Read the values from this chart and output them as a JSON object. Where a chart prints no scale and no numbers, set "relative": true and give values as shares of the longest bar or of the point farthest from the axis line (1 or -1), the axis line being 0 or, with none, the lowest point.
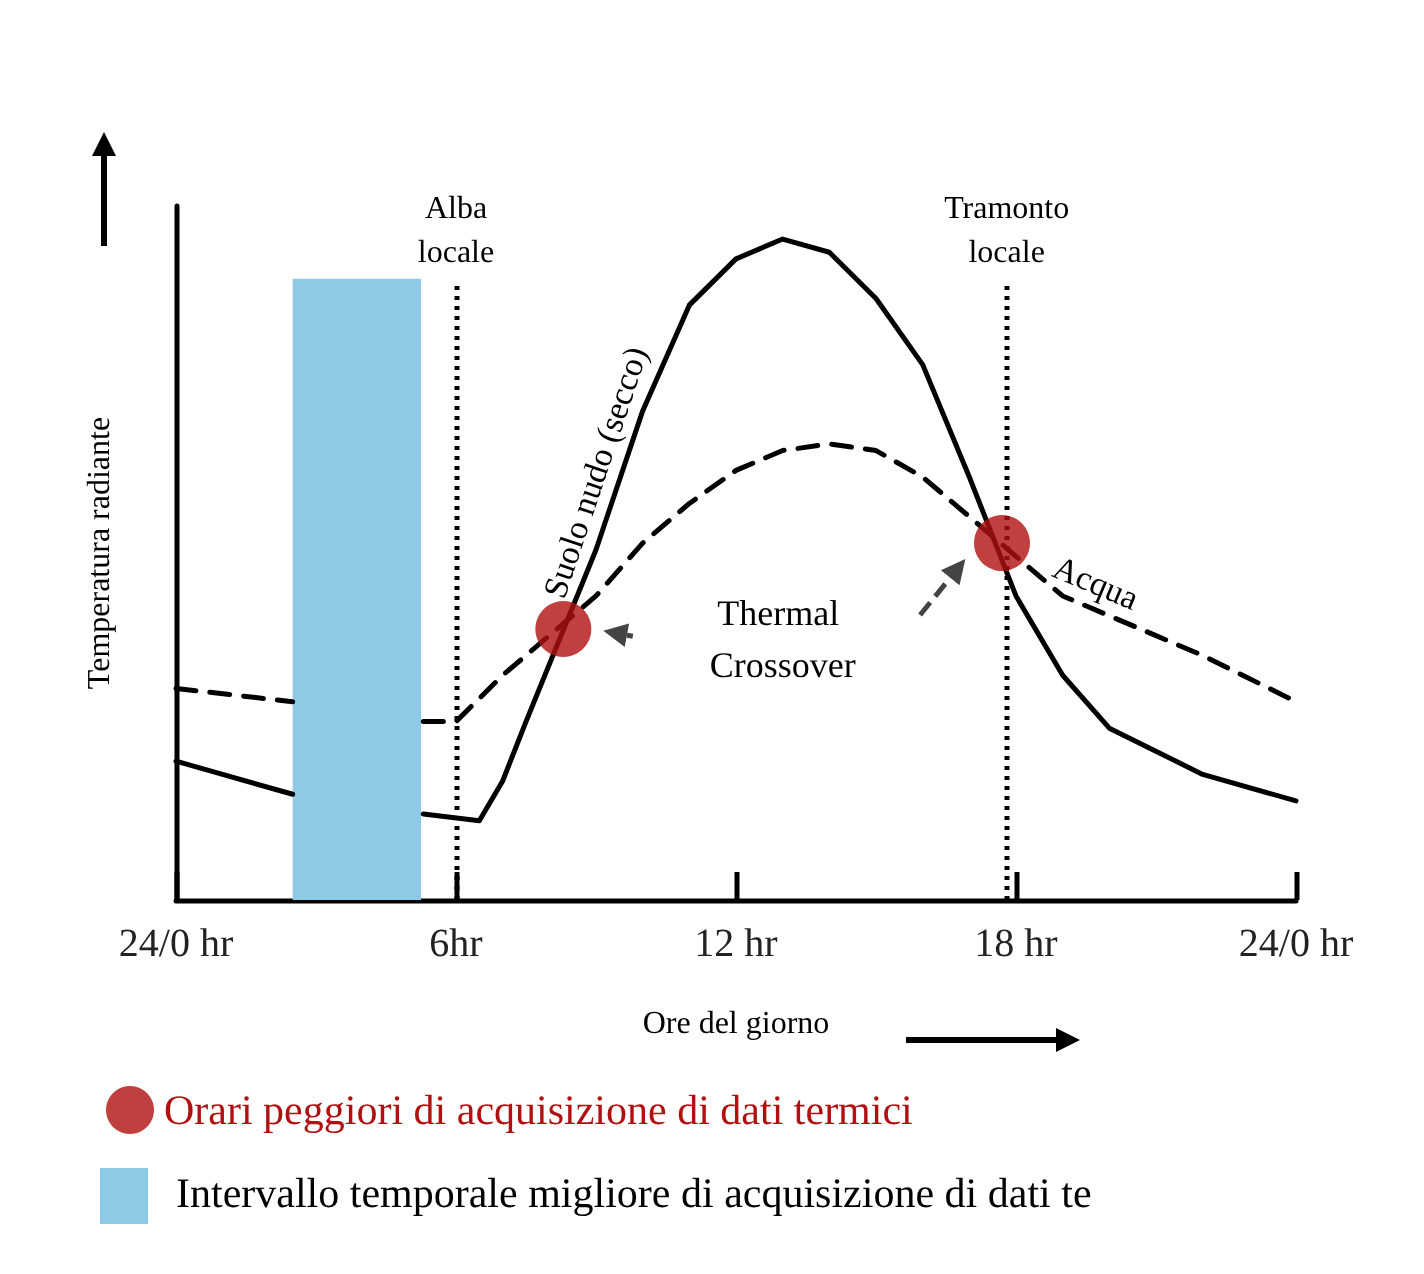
{
  "chart_data": {
    "type": "line",
    "relative": true,
    "xlabel": "Ore del giorno",
    "ylabel": "Temperatura radiante",
    "xlim": [
      0,
      24
    ],
    "xticks": [
      {
        "value": 0,
        "label": "24/0 hr"
      },
      {
        "value": 6,
        "label": "6hr"
      },
      {
        "value": 12,
        "label": "12 hr"
      },
      {
        "value": 18,
        "label": "18 hr"
      },
      {
        "value": 24,
        "label": "24/0 hr"
      }
    ],
    "series": [
      {
        "name": "Suolo nudo (secco)",
        "color": "#000000",
        "line_style": "solid",
        "marker": "none",
        "x": [
          0,
          2.5,
          4,
          5.3,
          6.5,
          7,
          7.5,
          9,
          10,
          11,
          12,
          13,
          14,
          15,
          16,
          17,
          18,
          19,
          20,
          22,
          24
        ],
        "values": [
          0.21,
          0.16,
          null,
          0.13,
          0.12,
          0.18,
          0.27,
          0.53,
          0.74,
          0.9,
          0.97,
          1.0,
          0.98,
          0.91,
          0.81,
          0.64,
          0.46,
          0.34,
          0.26,
          0.19,
          0.15
        ]
      },
      {
        "name": "Acqua",
        "color": "#000000",
        "line_style": "dashed",
        "marker": "none",
        "x": [
          0,
          2.5,
          4,
          5.3,
          6,
          7,
          9,
          10,
          11,
          12,
          13,
          14,
          15,
          16,
          17,
          19,
          20,
          22,
          24
        ],
        "values": [
          0.32,
          0.3,
          null,
          0.27,
          0.27,
          0.34,
          0.46,
          0.54,
          0.6,
          0.65,
          0.68,
          0.69,
          0.68,
          0.64,
          0.58,
          0.46,
          0.43,
          0.37,
          0.3
        ]
      },
      {
        "name": "Orari peggiori di acquisizione di dati termici",
        "type": "scatter",
        "color": "#b01010",
        "marker": "circle",
        "x": [
          8.3,
          17.7
        ],
        "values": [
          0.41,
          0.54
        ]
      }
    ],
    "ref_lines": [
      {
        "axis": "x",
        "value": 6,
        "label": "Alba\nlocale",
        "line_style": "dotted",
        "color": "#000000"
      },
      {
        "axis": "x",
        "value": 17.8,
        "label": "Tramonto\nlocale",
        "line_style": "dotted",
        "color": "#000000"
      }
    ],
    "bands": [
      {
        "axis": "x",
        "from": 2.5,
        "to": 5.25,
        "label": "Intervallo temporale migliore di acquisizione di dati te",
        "color": "#8ecae6"
      }
    ],
    "annotations": [
      "Thermal Crossover"
    ],
    "legend": "bottom",
    "grid": false
  }
}
